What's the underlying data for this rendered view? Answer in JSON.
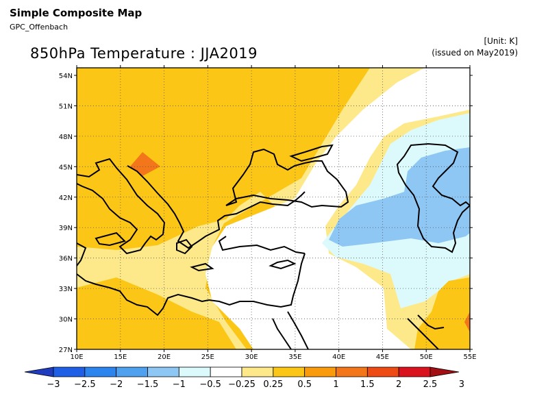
{
  "header": {
    "title": "Simple Composite Map",
    "source": "GPC_Offenbach"
  },
  "map": {
    "title": "850hPa Temperature : JJA2019",
    "unit": "[Unit: K]",
    "issued": "(issued on May2019)",
    "lat_labels": [
      "54N",
      "51N",
      "48N",
      "45N",
      "42N",
      "39N",
      "36N",
      "33N",
      "30N",
      "27N"
    ],
    "lon_labels": [
      "10E",
      "15E",
      "20E",
      "25E",
      "30E",
      "35E",
      "40E",
      "45E",
      "50E",
      "55E"
    ]
  },
  "colorbar": {
    "labels": [
      "-3",
      "-2.5",
      "-2",
      "-1.5",
      "-1",
      "-0.5",
      "-0.25",
      "0.25",
      "0.5",
      "1",
      "1.5",
      "2",
      "2.5",
      "3"
    ],
    "colors": [
      "#1f3cbf",
      "#1e5fe6",
      "#2c84ef",
      "#4fa0ef",
      "#8ec6f4",
      "#dcfafc",
      "#ffffff",
      "#fde98a",
      "#fbc616",
      "#f99b0d",
      "#f4761a",
      "#ee4a14",
      "#d9121e",
      "#a31014"
    ]
  }
}
